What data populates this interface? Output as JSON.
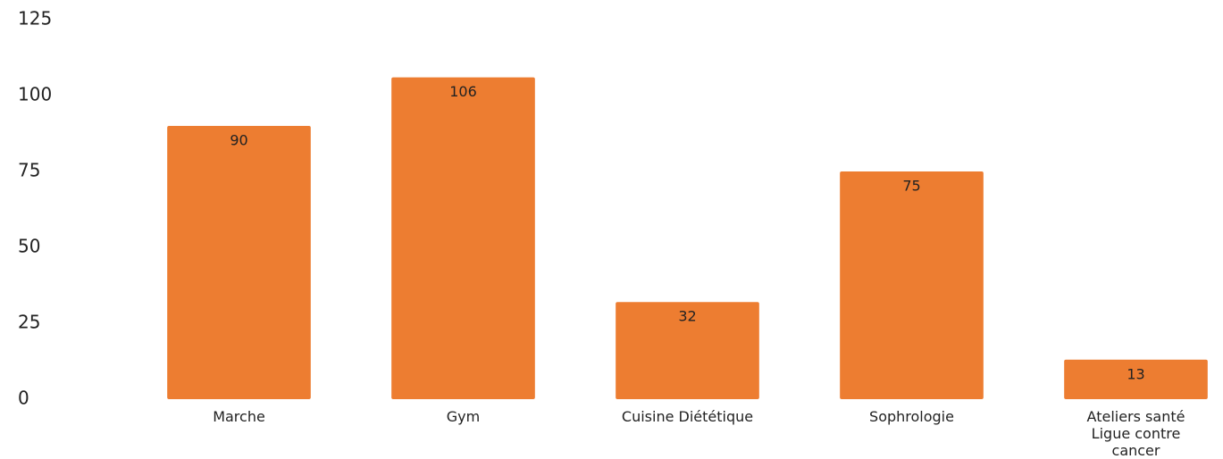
{
  "chart_data": {
    "type": "bar",
    "categories": [
      "Marche",
      "Gym",
      "Cuisine Diététique",
      "Sophrologie",
      "Ateliers santé Ligue contre cancer"
    ],
    "values": [
      90,
      106,
      32,
      75,
      13
    ],
    "color": "#ed7d31",
    "ylim": [
      0,
      125
    ],
    "yticks": [
      0,
      25,
      50,
      75,
      100,
      125
    ],
    "grid": false
  }
}
